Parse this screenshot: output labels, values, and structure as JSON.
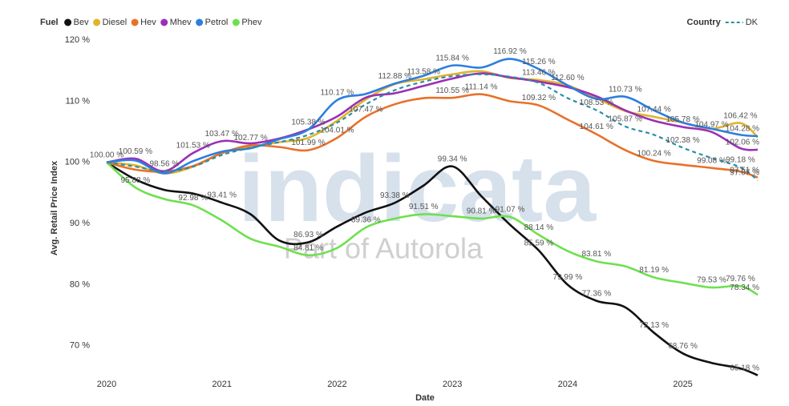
{
  "chart_data": {
    "type": "line",
    "x_label": "Date",
    "y_label": "Avg. Retail Price Index",
    "watermark": [
      "indicata",
      "Part of Autorola"
    ],
    "x": [
      2020,
      2020.25,
      2020.5,
      2020.75,
      2021,
      2021.25,
      2021.5,
      2021.75,
      2022,
      2022.25,
      2022.5,
      2022.75,
      2023,
      2023.25,
      2023.5,
      2023.75,
      2024,
      2024.25,
      2024.5,
      2024.75,
      2025,
      2025.25,
      2025.5,
      2025.65
    ],
    "xlim": [
      2020,
      2025.65
    ],
    "xticks": [
      2020,
      2021,
      2022,
      2023,
      2024,
      2025
    ],
    "ylim": [
      65,
      120
    ],
    "yticks": [
      {
        "value": 70,
        "label": "70 %"
      },
      {
        "value": 80,
        "label": "80 %"
      },
      {
        "value": 90,
        "label": "90 %"
      },
      {
        "value": 100,
        "label": "100 %"
      },
      {
        "value": 110,
        "label": "110 %"
      },
      {
        "value": 120,
        "label": "120 %"
      }
    ],
    "grid": false,
    "legend_groups": [
      {
        "title": "Fuel",
        "position": "top-left",
        "series": [
          {
            "name": "Bev",
            "color": "#111111",
            "values": [
              100,
              97.2,
              95.5,
              94.9,
              93.41,
              91.5,
              87.2,
              86.93,
              89.5,
              91.8,
              93.38,
              96.2,
              99.34,
              94.5,
              89.8,
              85.59,
              79.99,
              77.36,
              76.3,
              72.13,
              68.76,
              67.2,
              66.3,
              65.18
            ],
            "value_labels": [
              "100.00 %",
              null,
              null,
              null,
              "93.41 %",
              null,
              null,
              "86.93 %",
              null,
              null,
              "93.38 %",
              null,
              "99.34 %",
              null,
              null,
              "85.59 %",
              "79.99 %",
              "77.36 %",
              null,
              "72.13 %",
              "68.76 %",
              null,
              null,
              "65.18 %"
            ]
          },
          {
            "name": "Diesel",
            "color": "#e0b42a",
            "values": [
              100,
              99.5,
              98.2,
              99.3,
              101.5,
              102.5,
              103.3,
              104,
              106.8,
              110.3,
              112.8,
              113.58,
              114.4,
              114.9,
              113.8,
              113.46,
              112.6,
              110.5,
              108.4,
              107.44,
              106.5,
              105.5,
              106.42,
              104.1
            ],
            "value_labels": [
              null,
              null,
              null,
              null,
              null,
              null,
              null,
              null,
              null,
              null,
              null,
              "113.58 %",
              null,
              null,
              null,
              "113.46 %",
              null,
              null,
              null,
              "107.44 %",
              null,
              null,
              "106.42 %",
              null
            ]
          },
          {
            "name": "Hev",
            "color": "#e8712a",
            "values": [
              100,
              98.8,
              98.5,
              99.4,
              101.5,
              102.77,
              102.5,
              101.99,
              104.01,
              107.47,
              109.5,
              110.5,
              110.55,
              111.14,
              110,
              109.32,
              107,
              104.61,
              102,
              100.24,
              99.6,
              99.08,
              98.5,
              97.51
            ],
            "value_labels": [
              null,
              null,
              null,
              null,
              null,
              "102.77 %",
              null,
              "101.99 %",
              "104.01 %",
              "107.47 %",
              null,
              null,
              "110.55 %",
              "111.14 %",
              null,
              "109.32 %",
              null,
              "104.61 %",
              null,
              "100.24 %",
              null,
              "99.08 %",
              null,
              "97.51 %"
            ]
          },
          {
            "name": "Mhev",
            "color": "#9b2fb6",
            "values": [
              100,
              100.59,
              98.56,
              101.53,
              103.47,
              103.1,
              103.9,
              105.4,
              107.5,
              110.6,
              111.3,
              112.5,
              113.7,
              114.55,
              113.9,
              113.2,
              112.3,
              110.8,
              108.5,
              106.8,
              105.78,
              104.97,
              102.3,
              102.06
            ],
            "value_labels": [
              null,
              "100.59 %",
              "98.56 %",
              "101.53 %",
              "103.47 %",
              null,
              null,
              null,
              null,
              null,
              null,
              null,
              null,
              null,
              null,
              null,
              null,
              null,
              null,
              null,
              "105.78 %",
              "104.97 %",
              null,
              "102.06 %"
            ]
          },
          {
            "name": "Petrol",
            "color": "#2d7ee0",
            "values": [
              100,
              100.3,
              98.2,
              100.2,
              101.75,
              102.3,
              103.8,
              105.38,
              110.17,
              111.2,
              112.88,
              114.16,
              115.84,
              115.5,
              116.92,
              115.26,
              112.6,
              110.38,
              110.73,
              108.5,
              106.5,
              105.5,
              104.5,
              104.28
            ],
            "value_labels": [
              null,
              null,
              null,
              null,
              null,
              null,
              null,
              "105.38 %",
              "110.17 %",
              null,
              "112.88 %",
              null,
              "115.84 %",
              null,
              "116.92 %",
              "115.26 %",
              "112.60 %",
              null,
              "110.73 %",
              null,
              null,
              null,
              null,
              "104.28 %"
            ]
          },
          {
            "name": "Phev",
            "color": "#6ee04f",
            "values": [
              100,
              95.88,
              94,
              92.98,
              90.5,
              87.5,
              86.2,
              84.81,
              86,
              89.36,
              90.8,
              91.51,
              91.2,
              90.81,
              91.07,
              88.14,
              85.5,
              83.81,
              83,
              81.19,
              80.3,
              79.53,
              79.76,
              78.34
            ],
            "value_labels": [
              null,
              "95.88 %",
              null,
              "92.98 %",
              null,
              null,
              null,
              "84.81 %",
              null,
              "89.36 %",
              null,
              "91.51 %",
              null,
              "90.81 %",
              "91.07 %",
              "88.14 %",
              null,
              "83.81 %",
              null,
              "81.19 %",
              null,
              "79.53 %",
              "79.76 %",
              "78.34 %"
            ]
          }
        ]
      },
      {
        "title": "Country",
        "position": "top-right",
        "series": [
          {
            "name": "DK",
            "color": "#2a8ea8",
            "dashed": true,
            "values": [
              100,
              99.3,
              98.5,
              99.3,
              101.2,
              102.4,
              103.3,
              104.5,
              106.5,
              109.5,
              111.8,
              113.2,
              114.1,
              114.4,
              114,
              113,
              110.5,
              108.53,
              105.87,
              104.5,
              102.38,
              100.7,
              99.18,
              97.07
            ],
            "value_labels": [
              null,
              null,
              null,
              null,
              null,
              null,
              null,
              null,
              null,
              null,
              null,
              null,
              null,
              null,
              null,
              null,
              null,
              "108.53 %",
              "105.87 %",
              null,
              "102.38 %",
              null,
              "99.18 %",
              "97.07 %"
            ]
          }
        ]
      }
    ]
  }
}
